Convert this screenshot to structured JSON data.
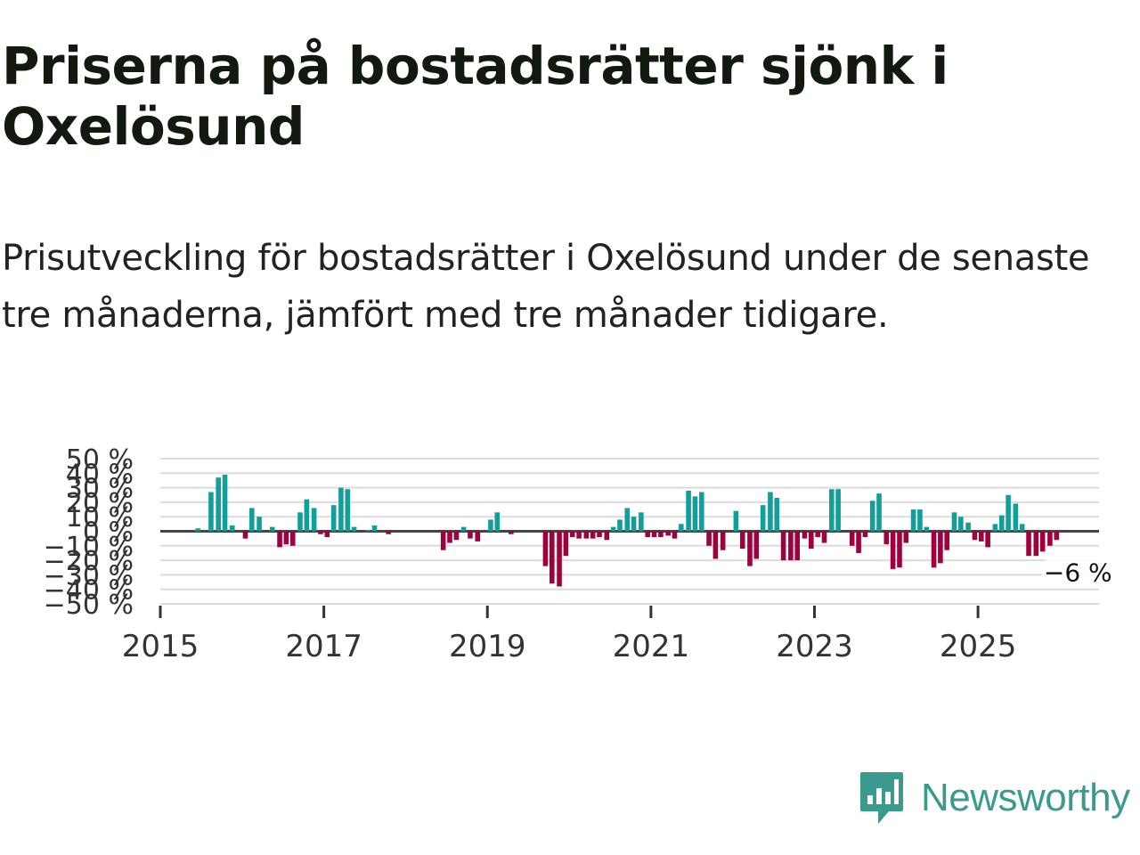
{
  "title": "Priserna på bostadsrätter sjönk i Oxelösund",
  "subtitle": "Prisutveckling för bostadsrätter i Oxelösund under de senaste tre månaderna, jämfört med tre månader tidigare.",
  "brand": {
    "name": "Newsworthy",
    "icon": "newsworthy-logo-icon",
    "color": "#3a9a8e"
  },
  "colors": {
    "positive": "#139e99",
    "negative": "#a0003e",
    "zero_line": "#444444",
    "grid": "#dcdcdc"
  },
  "chart_data": {
    "type": "bar",
    "title": "Priserna på bostadsrätter sjönk i Oxelösund",
    "xlabel": "",
    "ylabel": "",
    "ylim": [
      -50,
      50
    ],
    "xlim": [
      2015.0,
      2026.48
    ],
    "y_ticks": [
      50,
      40,
      30,
      20,
      10,
      0,
      -10,
      -20,
      -30,
      -40,
      -50
    ],
    "y_tick_labels": [
      "50 %",
      "40 %",
      "30 %",
      "20 %",
      "10 %",
      "0 %",
      "−10 %",
      "−20 %",
      "−30 %",
      "−40 %",
      "−50 %"
    ],
    "x_ticks": [
      2015,
      2017,
      2019,
      2021,
      2023,
      2025
    ],
    "x_tick_labels": [
      "2015",
      "2017",
      "2019",
      "2021",
      "2023",
      "2025"
    ],
    "grid": true,
    "annotation": {
      "x": 2025.96,
      "value": -6,
      "label": "−6 %"
    },
    "x": [
      2015.46,
      2015.54,
      2015.62,
      2015.71,
      2015.79,
      2015.88,
      2015.96,
      2016.04,
      2016.12,
      2016.21,
      2016.29,
      2016.37,
      2016.46,
      2016.54,
      2016.62,
      2016.71,
      2016.79,
      2016.88,
      2016.96,
      2017.04,
      2017.12,
      2017.21,
      2017.29,
      2017.37,
      2017.46,
      2017.54,
      2017.62,
      2017.71,
      2017.79,
      2017.88,
      2017.96,
      2018.04,
      2018.12,
      2018.21,
      2018.29,
      2018.37,
      2018.46,
      2018.54,
      2018.62,
      2018.71,
      2018.79,
      2018.88,
      2018.96,
      2019.04,
      2019.12,
      2019.21,
      2019.29,
      2019.37,
      2019.46,
      2019.54,
      2019.62,
      2019.71,
      2019.79,
      2019.88,
      2019.96,
      2020.04,
      2020.12,
      2020.21,
      2020.29,
      2020.37,
      2020.46,
      2020.54,
      2020.62,
      2020.71,
      2020.79,
      2020.88,
      2020.96,
      2021.04,
      2021.12,
      2021.21,
      2021.29,
      2021.37,
      2021.46,
      2021.54,
      2021.62,
      2021.71,
      2021.79,
      2021.88,
      2021.96,
      2022.04,
      2022.12,
      2022.21,
      2022.29,
      2022.37,
      2022.46,
      2022.54,
      2022.62,
      2022.71,
      2022.79,
      2022.88,
      2022.96,
      2023.04,
      2023.12,
      2023.21,
      2023.29,
      2023.37,
      2023.46,
      2023.54,
      2023.62,
      2023.71,
      2023.79,
      2023.88,
      2023.96,
      2024.04,
      2024.12,
      2024.21,
      2024.29,
      2024.37,
      2024.46,
      2024.54,
      2024.62,
      2024.71,
      2024.79,
      2024.88,
      2024.96,
      2025.04,
      2025.12,
      2025.21,
      2025.29,
      2025.37,
      2025.46,
      2025.54,
      2025.62,
      2025.71,
      2025.79,
      2025.88,
      2025.96
    ],
    "series": [
      {
        "name": "Prisutveckling",
        "values": [
          2,
          0,
          27,
          37,
          39,
          4,
          0,
          -5,
          16,
          10,
          0,
          3,
          -11,
          -9,
          -10,
          13,
          22,
          16,
          -2,
          -4,
          18,
          30,
          29,
          3,
          0,
          1,
          4,
          0,
          -2,
          0,
          0,
          0,
          0,
          0,
          0,
          0,
          -13,
          -8,
          -6,
          3,
          -5,
          -7,
          0,
          8,
          13,
          0,
          -2,
          0,
          0,
          0,
          0,
          -24,
          -36,
          -38,
          -17,
          -4,
          -5,
          -5,
          -5,
          -4,
          -6,
          3,
          8,
          16,
          10,
          13,
          -4,
          -4,
          -4,
          -3,
          -5,
          5,
          28,
          24,
          27,
          -10,
          -19,
          -13,
          0,
          14,
          -12,
          -24,
          -19,
          18,
          27,
          23,
          -20,
          -20,
          -20,
          -5,
          -12,
          -4,
          -8,
          29,
          29,
          0,
          -10,
          -15,
          -4,
          21,
          26,
          -9,
          -26,
          -25,
          -8,
          15,
          15,
          3,
          -25,
          -22,
          -13,
          13,
          10,
          6,
          -6,
          -7,
          -11,
          5,
          11,
          25,
          19,
          5,
          -17,
          -17,
          -14,
          -10,
          -6
        ]
      }
    ]
  }
}
